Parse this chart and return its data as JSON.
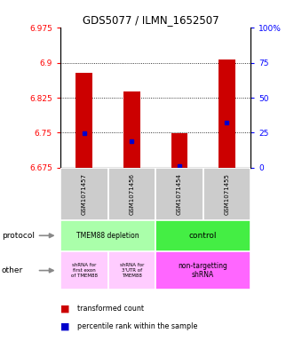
{
  "title": "GDS5077 / ILMN_1652507",
  "samples": [
    "GSM1071457",
    "GSM1071456",
    "GSM1071454",
    "GSM1071455"
  ],
  "bar_bottoms": [
    6.675,
    6.675,
    6.675,
    6.675
  ],
  "bar_tops": [
    6.878,
    6.838,
    6.748,
    6.908
  ],
  "percentile_values": [
    6.748,
    6.732,
    6.678,
    6.772
  ],
  "ylim_min": 6.675,
  "ylim_max": 6.975,
  "yticks": [
    6.675,
    6.75,
    6.825,
    6.9,
    6.975
  ],
  "ytick_labels": [
    "6.675",
    "6.75",
    "6.825",
    "6.9",
    "6.975"
  ],
  "right_yticks": [
    0,
    25,
    50,
    75,
    100
  ],
  "right_ytick_labels": [
    "0",
    "25",
    "50",
    "75",
    "100%"
  ],
  "bar_color": "#cc0000",
  "percentile_color": "#0000cc",
  "sample_bg": "#cccccc",
  "prot_left_color": "#aaffaa",
  "prot_right_color": "#44ee44",
  "other_left_color": "#ffccff",
  "other_right_color": "#ff66ff"
}
